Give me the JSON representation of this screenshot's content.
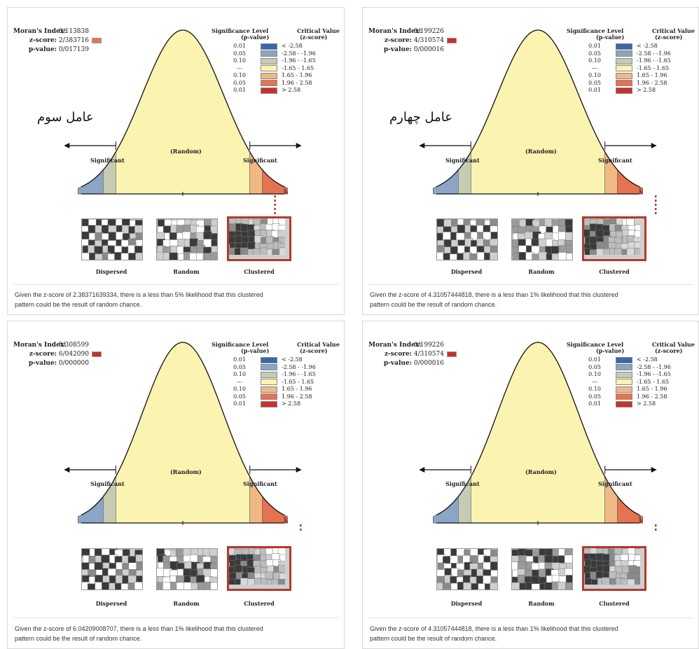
{
  "labels": {
    "morans_index": "Moran's Index:",
    "z_score": "z-score:",
    "p_value": "p-value:",
    "sig_level_1": "Significance Level",
    "sig_level_2": "(p-value)",
    "crit_value_1": "Critical Value",
    "crit_value_2": "(z-score)",
    "significant": "Significant",
    "random": "(Random)",
    "dispersed": "Dispersed",
    "random_caption": "Random",
    "clustered": "Clustered"
  },
  "legend": [
    {
      "p": "0.01",
      "z": "< -2.58",
      "color": "#3a67a8"
    },
    {
      "p": "0.05",
      "z": "-2.58 - -1.96",
      "color": "#8aa5c6"
    },
    {
      "p": "0.10",
      "z": "-1.96 - -1.65",
      "color": "#c6cbb4"
    },
    {
      "p": "---",
      "z": "-1.65 - 1.65",
      "color": "#fbf3b0"
    },
    {
      "p": "0.10",
      "z": "1.65 - 1.96",
      "color": "#f2b884"
    },
    {
      "p": "0.05",
      "z": "1.96 - 2.58",
      "color": "#e67350"
    },
    {
      "p": "0.01",
      "z": "> 2.58",
      "color": "#c9302a"
    }
  ],
  "panels": [
    {
      "morans_index": "0/113838",
      "z_score": "2/383716",
      "p_value": "0/017139",
      "z_color": "#e67350",
      "caption": "عامل سوم",
      "desc_1": "Given the z-score of 2.38371639334, there is a less than 5% likelihood that this clustered",
      "desc_2": "pattern could be the result of random chance.",
      "highlight_band": "0.05"
    },
    {
      "morans_index": "0/199226",
      "z_score": "4/310574",
      "p_value": "0/000016",
      "z_color": "#c9302a",
      "caption": "عامل چهارم",
      "desc_1": "Given the z-score of 4.31057444818, there is a less than 1% likelihood that this clustered",
      "desc_2": "pattern could be the result of random chance.",
      "highlight_band": "0.01"
    },
    {
      "morans_index": "0/308599",
      "z_score": "6/042090",
      "p_value": "0/000000",
      "z_color": "#c9302a",
      "caption": "",
      "desc_1": "Given the z-score of 6.04209008707, there is a less than 1% likelihood that this clustered",
      "desc_2": "pattern could be the result of random chance.",
      "highlight_band": "0.01"
    },
    {
      "morans_index": "0/199226",
      "z_score": "4/310574",
      "p_value": "0/000016",
      "z_color": "#c9302a",
      "caption": "",
      "desc_1": "Given the z-score of 4.31057444818, there is a less than 1% likelihood that this clustered",
      "desc_2": "pattern could be the result of random chance.",
      "highlight_band": "0.01"
    }
  ]
}
